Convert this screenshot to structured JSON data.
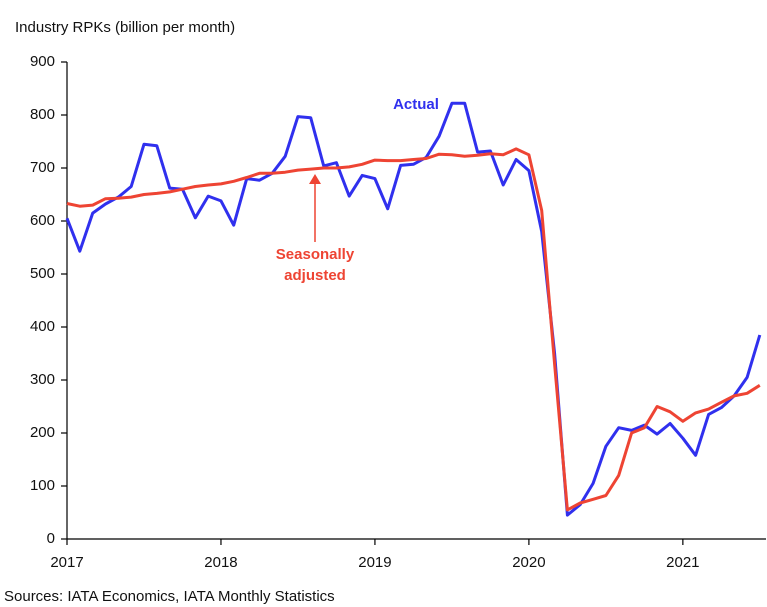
{
  "chart_data": {
    "type": "line",
    "title": "Industry RPKs (billion per month)",
    "source": "Sources: IATA Economics, IATA Monthly Statistics",
    "x": [
      2017,
      2017.083,
      2017.167,
      2017.25,
      2017.333,
      2017.417,
      2017.5,
      2017.583,
      2017.667,
      2017.75,
      2017.833,
      2017.917,
      2018,
      2018.083,
      2018.167,
      2018.25,
      2018.333,
      2018.417,
      2018.5,
      2018.583,
      2018.667,
      2018.75,
      2018.833,
      2018.917,
      2019,
      2019.083,
      2019.167,
      2019.25,
      2019.333,
      2019.417,
      2019.5,
      2019.583,
      2019.667,
      2019.75,
      2019.833,
      2019.917,
      2020,
      2020.083,
      2020.167,
      2020.25,
      2020.333,
      2020.417,
      2020.5,
      2020.583,
      2020.667,
      2020.75,
      2020.833,
      2020.917,
      2021,
      2021.083,
      2021.167,
      2021.25,
      2021.333,
      2021.417,
      2021.5
    ],
    "series": [
      {
        "name": "Actual",
        "color": "#3030ee",
        "values": [
          605,
          543,
          615,
          632,
          645,
          665,
          745,
          742,
          662,
          660,
          606,
          647,
          638,
          592,
          680,
          677,
          690,
          722,
          797,
          795,
          704,
          710,
          647,
          686,
          680,
          623,
          705,
          707,
          720,
          760,
          822,
          822,
          730,
          732,
          668,
          716,
          695,
          580,
          350,
          45,
          65,
          105,
          175,
          210,
          205,
          215,
          198,
          218,
          190,
          158,
          235,
          248,
          270,
          305,
          385
        ]
      },
      {
        "name": "Seasonally adjusted",
        "color": "#ee4433",
        "values": [
          633,
          628,
          630,
          642,
          643,
          645,
          650,
          652,
          655,
          660,
          665,
          668,
          670,
          675,
          682,
          690,
          690,
          692,
          696,
          698,
          700,
          700,
          702,
          707,
          715,
          714,
          714,
          716,
          718,
          726,
          725,
          722,
          724,
          727,
          725,
          736,
          725,
          620,
          330,
          55,
          68,
          75,
          82,
          120,
          200,
          210,
          250,
          240,
          222,
          238,
          245,
          258,
          270,
          275,
          290
        ]
      }
    ],
    "annotations": [
      "Actual",
      "Seasonally",
      "adjusted"
    ],
    "xlim": [
      2017,
      2021.54
    ],
    "xticks": [
      2017,
      2018,
      2019,
      2020,
      2021
    ],
    "ylim": [
      0,
      900
    ],
    "yticks": [
      0,
      100,
      200,
      300,
      400,
      500,
      600,
      700,
      800,
      900
    ],
    "grid": false
  }
}
